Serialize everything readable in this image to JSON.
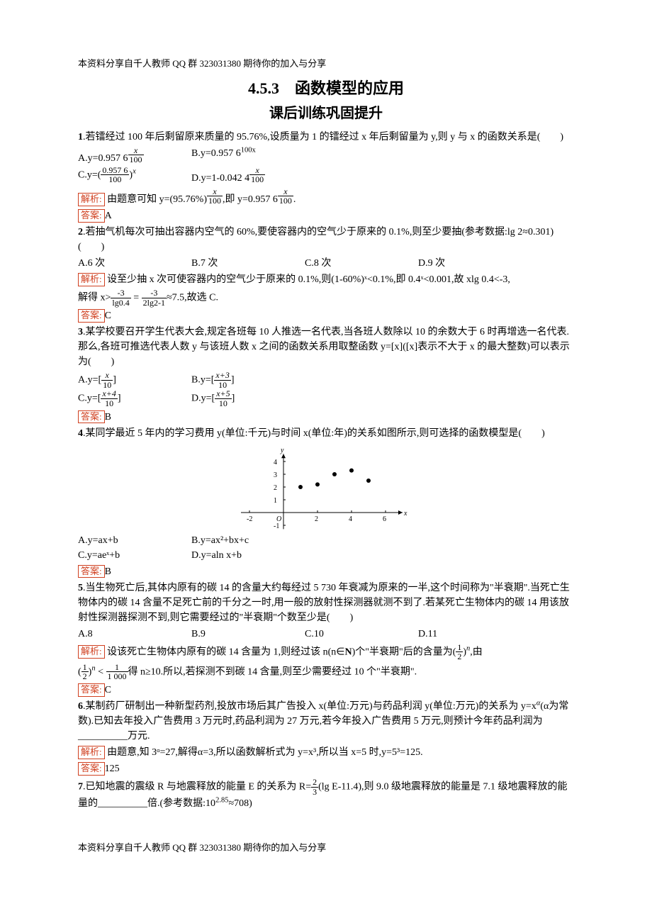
{
  "header": "本资料分享自千人教师 QQ 群 323031380 期待你的加入与分享",
  "footer": "本资料分享自千人教师 QQ 群 323031380 期待你的加入与分享",
  "title": "4.5.3　函数模型的应用",
  "subtitle": "课后训练巩固提升",
  "labels": {
    "jiexi": "解析:",
    "daan": "答案:"
  },
  "q1": {
    "text": ".若镭经过 100 年后剩留原来质量的 95.76%,设质量为 1 的镭经过 x 年后剩留量为 y,则 y 与 x 的函数关系是(　　)",
    "optA_pre": "A.y=0.957 6",
    "optB_pre": "B.y=0.957 6",
    "optB_sup": "100x",
    "optC_pre": "C.y=",
    "optC_num": "0.957 6",
    "optC_den": "100",
    "optD_pre": "D.y=1-0.042 4",
    "frac_num": "x",
    "frac_den": "100",
    "jiexi_a": "由题意可知 y=(95.76%)",
    "jiexi_b": ",即 y=0.957 6",
    "jiexi_c": ".",
    "ans": "A"
  },
  "q2": {
    "text": ".若抽气机每次可抽出容器内空气的 60%,要使容器内的空气少于原来的 0.1%,则至少要抽(参考数据:lg 2≈0.301)(　　)",
    "A": "A.6 次",
    "B": "B.7 次",
    "C": "C.8 次",
    "D": "D.9 次",
    "jiexi_a": "设至少抽 x 次可使容器内的空气少于原来的 0.1%,则(1-60%)ˣ<0.1%,即 0.4ˣ<0.001,故 xlg 0.4<-3,",
    "jiexi_b": "解得 x>",
    "f1n": "-3",
    "f1d": "lg0.4",
    "eq": " = ",
    "f2n": "-3",
    "f2d": "2lg2-1",
    "jiexi_c": "≈7.5,故选 C.",
    "ans": "C"
  },
  "q3": {
    "text": ".某学校要召开学生代表大会,规定各班每 10 人推选一名代表,当各班人数除以 10 的余数大于 6 时再增选一名代表.那么,各班可推选代表人数 y 与该班人数 x 之间的函数关系用取整函数 y=[x]([x]表示不大于 x 的最大整数)可以表示为(　　)",
    "A_pre": "A.y=",
    "A_num": "x",
    "B_pre": "B.y=",
    "B_num": "x+3",
    "C_pre": "C.y=",
    "C_num": "x+4",
    "D_pre": "D.y=",
    "D_num": "x+5",
    "den": "10",
    "ans": "B"
  },
  "q4": {
    "text": ".某同学最近 5 年内的学习费用 y(单位:千元)与时间 x(单位:年)的关系如图所示,则可选择的函数模型是(　　)",
    "A": "A.y=ax+b",
    "B": "B.y=ax²+bx+c",
    "C": "C.y=aeˣ+b",
    "D": "D.y=aln x+b",
    "ans": "B",
    "chart": {
      "type": "scatter",
      "x_ticks": [
        -2,
        0,
        2,
        4,
        6
      ],
      "y_ticks": [
        -1,
        1,
        2,
        3,
        4
      ],
      "x_label": "x",
      "y_label": "y",
      "points": [
        [
          1,
          2
        ],
        [
          2,
          2.2
        ],
        [
          3,
          3
        ],
        [
          4,
          3.3
        ],
        [
          5,
          2.5
        ]
      ],
      "axis_color": "#000",
      "tick_fontsize": 10,
      "point_color": "#000",
      "point_size": 3
    }
  },
  "q5": {
    "text": ".当生物死亡后,其体内原有的碳 14 的含量大约每经过 5 730 年衰减为原来的一半,这个时间称为\"半衰期\".当死亡生物体内的碳 14 含量不足死亡前的千分之一时,用一般的放射性探测器就测不到了.若某死亡生物体内的碳 14 用该放射性探测器探测不到,则它需要经过的\"半衰期\"个数至少是(　　)",
    "A": "A.8",
    "B": "B.9",
    "C": "C.10",
    "D": "D.11",
    "jiexi_a": "设该死亡生物体内原有的碳 14 含量为 1,则经过该 n(n∈",
    "jiexi_a2": ")个\"半衰期\"后的含量为",
    "half_n": "1",
    "half_d": "2",
    "jiexi_b": ",由",
    "lt": " < ",
    "thou_n": "1",
    "thou_d": "1 000",
    "jiexi_c": "得 n≥10.所以,若探测不到碳 14 含量,则至少需要经过 10 个\"半衰期\".",
    "ans": "C"
  },
  "q6": {
    "text_a": ".某制药厂研制出一种新型药剂,投放市场后其广告投入 x(单位:万元)与药品利润 y(单位:万元)的关系为 y=x",
    "text_b": "(α为常数).已知去年投入广告费用 3 万元时,药品利润为 27 万元,若今年投入广告费用 5 万元,则预计今年药品利润为__________万元.",
    "jiexi": "由题意,知 3ᵅ=27,解得α=3,所以函数解析式为 y=x³,所以当 x=5 时,y=5³=125.",
    "ans": "125"
  },
  "q7": {
    "text_a": ".已知地震的震级 R 与地震释放的能量 E 的关系为 R=",
    "f_n": "2",
    "f_d": "3",
    "text_b": "(lg E-11.4),则 9.0 级地震释放的能量是 7.1 级地震释放的能量的__________倍.(参考数据:10",
    "exp": "2.85",
    "text_c": "≈708)"
  }
}
